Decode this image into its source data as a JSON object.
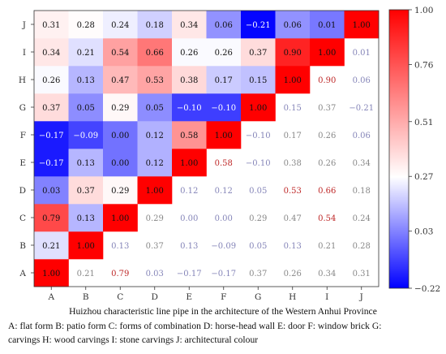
{
  "chart_data": {
    "type": "heatmap",
    "title": "",
    "xlabel": "",
    "ylabel": "",
    "x_categories": [
      "A",
      "B",
      "C",
      "D",
      "E",
      "F",
      "G",
      "H",
      "I",
      "J"
    ],
    "y_categories": [
      "A",
      "B",
      "C",
      "D",
      "E",
      "F",
      "G",
      "H",
      "I",
      "J"
    ],
    "values": [
      [
        1.0,
        0.21,
        0.79,
        0.03,
        -0.17,
        -0.17,
        0.37,
        0.26,
        0.34,
        0.31
      ],
      [
        0.21,
        1.0,
        0.13,
        0.37,
        0.13,
        -0.09,
        0.05,
        0.13,
        0.21,
        0.28
      ],
      [
        0.79,
        0.13,
        1.0,
        0.29,
        0.0,
        0.0,
        0.29,
        0.47,
        0.54,
        0.24
      ],
      [
        0.03,
        0.37,
        0.29,
        1.0,
        0.12,
        0.12,
        0.05,
        0.53,
        0.66,
        0.18
      ],
      [
        -0.17,
        0.13,
        0.0,
        0.12,
        1.0,
        0.58,
        -0.1,
        0.38,
        0.26,
        0.34
      ],
      [
        -0.17,
        -0.09,
        0.0,
        0.12,
        0.58,
        1.0,
        -0.1,
        0.17,
        0.26,
        0.06
      ],
      [
        0.37,
        0.05,
        0.29,
        0.05,
        -0.1,
        -0.1,
        1.0,
        0.15,
        0.37,
        -0.21
      ],
      [
        0.26,
        0.13,
        0.47,
        0.53,
        0.38,
        0.17,
        0.15,
        1.0,
        0.9,
        0.06
      ],
      [
        0.34,
        0.21,
        0.54,
        0.66,
        0.26,
        0.26,
        0.37,
        0.9,
        1.0,
        0.01
      ],
      [
        0.31,
        0.28,
        0.24,
        0.18,
        0.34,
        0.06,
        -0.21,
        0.06,
        0.01,
        1.0
      ]
    ],
    "value_range": [
      -0.22,
      1.0
    ],
    "colorbar_ticks": [
      {
        "value": 1.0,
        "label": "1.00"
      },
      {
        "value": 0.76,
        "label": "0.76"
      },
      {
        "value": 0.51,
        "label": "0.51"
      },
      {
        "value": 0.27,
        "label": "0.27"
      },
      {
        "value": 0.03,
        "label": "0.03"
      },
      {
        "value": -0.22,
        "label": "−0.22"
      }
    ],
    "colormap": {
      "low": "#0000ff",
      "mid": "#ffffff",
      "high": "#ff0000"
    },
    "shading": "lower triangle (column ≤ row) colored; upper triangle shows faded text only",
    "legend": "colorbar right",
    "grid": false
  },
  "caption": {
    "title": "Huizhou characteristic line pipe in the architecture of the Western Anhui Province",
    "legend_line1": "A: flat form B: patio form C: forms of combination D: horse-head wall E: door F: window brick G:",
    "legend_line2": "carvings H: wood carvings I: stone carvings J: architectural colour"
  }
}
